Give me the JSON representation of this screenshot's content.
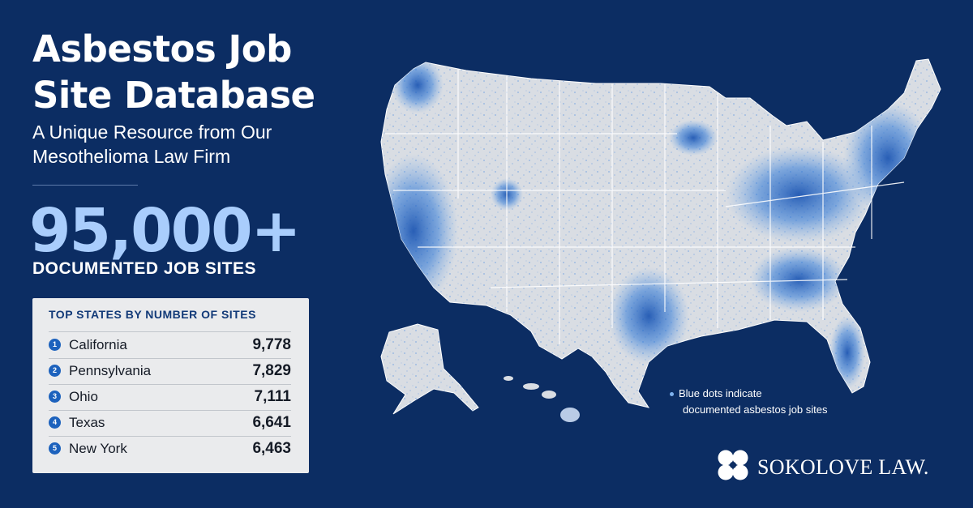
{
  "title_lines": [
    "Asbestos Job",
    "Site Database"
  ],
  "subtitle_lines": [
    "A Unique Resource from Our",
    "Mesothelioma Law Firm"
  ],
  "big_number": "95,000+",
  "big_caption": "DOCUMENTED JOB SITES",
  "top_states": {
    "heading": "TOP STATES BY NUMBER OF SITES",
    "items": [
      {
        "rank": "1",
        "state": "California",
        "count": "9,778"
      },
      {
        "rank": "2",
        "state": "Pennsylvania",
        "count": "7,829"
      },
      {
        "rank": "3",
        "state": "Ohio",
        "count": "7,111"
      },
      {
        "rank": "4",
        "state": "Texas",
        "count": "6,641"
      },
      {
        "rank": "5",
        "state": "New York",
        "count": "6,463"
      }
    ]
  },
  "legend_lines": [
    "Blue dots indicate",
    "documented asbestos job sites"
  ],
  "brand": "SOKOLOVE LAW.",
  "colors": {
    "background": "#0c2d63",
    "accent_number": "#a9cdfc",
    "map_land": "#d9dde3",
    "map_dots": "#1f66c9",
    "card": "#eaebed",
    "rank_badge": "#1d62bd"
  },
  "map": {
    "hotspots": [
      {
        "region": "California",
        "intensity": 0.95
      },
      {
        "region": "Pacific Northwest",
        "intensity": 0.65
      },
      {
        "region": "Texas",
        "intensity": 0.7
      },
      {
        "region": "Great Lakes / Midwest",
        "intensity": 0.8
      },
      {
        "region": "Northeast",
        "intensity": 0.9
      },
      {
        "region": "Southeast",
        "intensity": 0.55
      },
      {
        "region": "Florida",
        "intensity": 0.6
      }
    ]
  }
}
